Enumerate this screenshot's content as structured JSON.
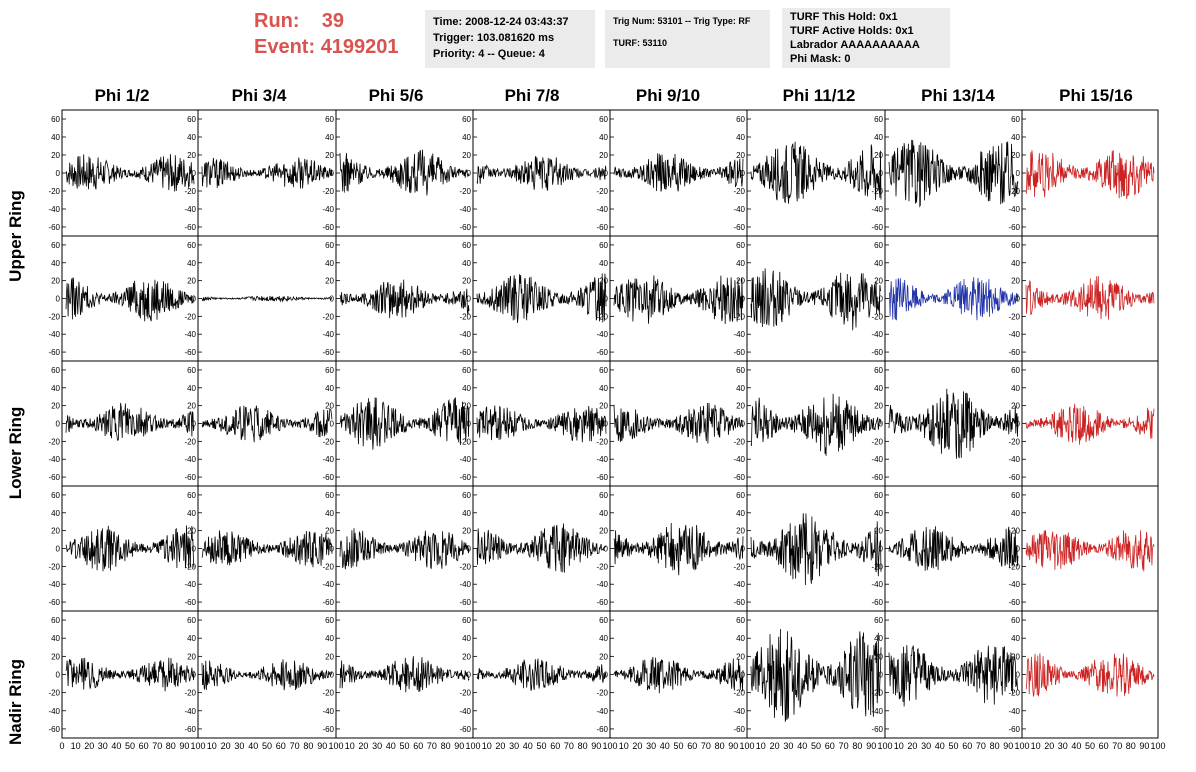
{
  "header": {
    "run_label": "Run:",
    "run_value": "39",
    "event_label": "Event:",
    "event_value": "4199201",
    "run_color": "#d9534f"
  },
  "info_time": {
    "time": "Time: 2008-12-24 03:43:37",
    "trigger": "Trigger: 103.081620 ms",
    "priority": "Priority: 4 -- Queue: 4"
  },
  "info_trig": {
    "trig": "Trig Num: 53101 -- Trig Type: RF",
    "turf": "TURF: 53110"
  },
  "info_turf": {
    "hold": "TURF This Hold: 0x1",
    "active": "TURF Active Holds: 0x1",
    "labrador": "Labrador AAAAAAAAAA",
    "phimask": "Phi Mask: 0"
  },
  "columns": [
    "Phi 1/2",
    "Phi 3/4",
    "Phi 5/6",
    "Phi 7/8",
    "Phi 9/10",
    "Phi 11/12",
    "Phi 13/14",
    "Phi 15/16"
  ],
  "rows": [
    "Upper Ring",
    "Lower Ring",
    "Nadir Ring"
  ],
  "y_ticks": [
    "60",
    "40",
    "20",
    "0",
    "-20",
    "-40",
    "-60"
  ],
  "x_tick_labels": [
    "0",
    "10",
    "20",
    "30",
    "40",
    "50",
    "60",
    "70",
    "80",
    "90",
    "100"
  ],
  "chart_data": {
    "type": "line",
    "ylim": [
      -70,
      70
    ],
    "xlim": [
      0,
      100
    ],
    "trace_colors": {
      "default": "#000000",
      "red": "#cc2222",
      "blue": "#2233aa"
    },
    "panels": [
      {
        "row": 0,
        "col": 0,
        "amplitude": 18,
        "color": "default"
      },
      {
        "row": 0,
        "col": 1,
        "amplitude": 15,
        "color": "default"
      },
      {
        "row": 0,
        "col": 2,
        "amplitude": 22,
        "color": "default"
      },
      {
        "row": 0,
        "col": 3,
        "amplitude": 18,
        "color": "default"
      },
      {
        "row": 0,
        "col": 4,
        "amplitude": 20,
        "color": "default"
      },
      {
        "row": 0,
        "col": 5,
        "amplitude": 30,
        "color": "default"
      },
      {
        "row": 0,
        "col": 6,
        "amplitude": 32,
        "color": "default"
      },
      {
        "row": 0,
        "col": 7,
        "amplitude": 25,
        "color": "red"
      },
      {
        "row": 1,
        "col": 0,
        "amplitude": 22,
        "color": "default"
      },
      {
        "row": 1,
        "col": 1,
        "amplitude": 3,
        "color": "default"
      },
      {
        "row": 1,
        "col": 2,
        "amplitude": 20,
        "color": "default"
      },
      {
        "row": 1,
        "col": 3,
        "amplitude": 24,
        "color": "default"
      },
      {
        "row": 1,
        "col": 4,
        "amplitude": 25,
        "color": "default"
      },
      {
        "row": 1,
        "col": 5,
        "amplitude": 30,
        "color": "default"
      },
      {
        "row": 1,
        "col": 6,
        "amplitude": 22,
        "color": "blue"
      },
      {
        "row": 1,
        "col": 7,
        "amplitude": 22,
        "color": "red"
      },
      {
        "row": 2,
        "col": 0,
        "amplitude": 20,
        "color": "default"
      },
      {
        "row": 2,
        "col": 1,
        "amplitude": 18,
        "color": "default"
      },
      {
        "row": 2,
        "col": 2,
        "amplitude": 25,
        "color": "default"
      },
      {
        "row": 2,
        "col": 3,
        "amplitude": 18,
        "color": "default"
      },
      {
        "row": 2,
        "col": 4,
        "amplitude": 20,
        "color": "default"
      },
      {
        "row": 2,
        "col": 5,
        "amplitude": 32,
        "color": "default"
      },
      {
        "row": 2,
        "col": 6,
        "amplitude": 35,
        "color": "default"
      },
      {
        "row": 2,
        "col": 7,
        "amplitude": 20,
        "color": "red"
      },
      {
        "row": 3,
        "col": 0,
        "amplitude": 22,
        "color": "default"
      },
      {
        "row": 3,
        "col": 1,
        "amplitude": 18,
        "color": "default"
      },
      {
        "row": 3,
        "col": 2,
        "amplitude": 20,
        "color": "default"
      },
      {
        "row": 3,
        "col": 3,
        "amplitude": 24,
        "color": "default"
      },
      {
        "row": 3,
        "col": 4,
        "amplitude": 28,
        "color": "default"
      },
      {
        "row": 3,
        "col": 5,
        "amplitude": 35,
        "color": "default"
      },
      {
        "row": 3,
        "col": 6,
        "amplitude": 22,
        "color": "default"
      },
      {
        "row": 3,
        "col": 7,
        "amplitude": 22,
        "color": "red"
      },
      {
        "row": 4,
        "col": 0,
        "amplitude": 16,
        "color": "default"
      },
      {
        "row": 4,
        "col": 1,
        "amplitude": 15,
        "color": "default"
      },
      {
        "row": 4,
        "col": 2,
        "amplitude": 18,
        "color": "default"
      },
      {
        "row": 4,
        "col": 3,
        "amplitude": 16,
        "color": "default"
      },
      {
        "row": 4,
        "col": 4,
        "amplitude": 18,
        "color": "default"
      },
      {
        "row": 4,
        "col": 5,
        "amplitude": 45,
        "color": "default"
      },
      {
        "row": 4,
        "col": 6,
        "amplitude": 30,
        "color": "default"
      },
      {
        "row": 4,
        "col": 7,
        "amplitude": 22,
        "color": "red"
      }
    ]
  }
}
